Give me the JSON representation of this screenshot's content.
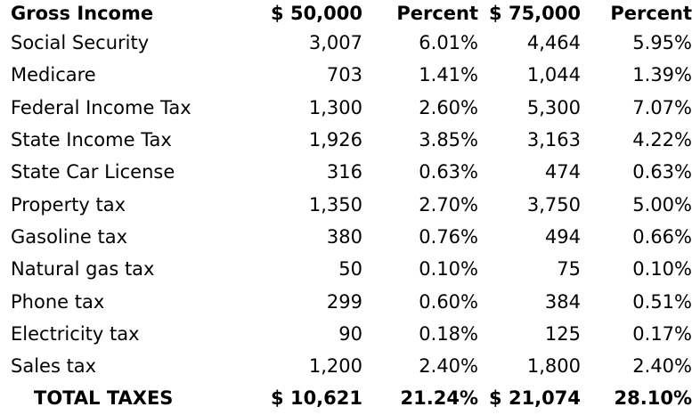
{
  "header": {
    "label": "Gross Income",
    "income_a": "$ 50,000",
    "pct_a": "Percent",
    "income_b": "$ 75,000",
    "pct_b": "Percent"
  },
  "rows": [
    {
      "name": "Social Security",
      "a": "3,007",
      "pa": "6.01%",
      "b": "4,464",
      "pb": "5.95%"
    },
    {
      "name": "Medicare",
      "a": "703",
      "pa": "1.41%",
      "b": "1,044",
      "pb": "1.39%"
    },
    {
      "name": "Federal Income Tax",
      "a": "1,300",
      "pa": "2.60%",
      "b": "5,300",
      "pb": "7.07%"
    },
    {
      "name": "State Income Tax",
      "a": "1,926",
      "pa": "3.85%",
      "b": "3,163",
      "pb": "4.22%"
    },
    {
      "name": "State Car License",
      "a": "316",
      "pa": "0.63%",
      "b": "474",
      "pb": "0.63%"
    },
    {
      "name": "Property tax",
      "a": "1,350",
      "pa": "2.70%",
      "b": "3,750",
      "pb": "5.00%"
    },
    {
      "name": "Gasoline tax",
      "a": "380",
      "pa": "0.76%",
      "b": "494",
      "pb": "0.66%"
    },
    {
      "name": "Natural gas tax",
      "a": "50",
      "pa": "0.10%",
      "b": "75",
      "pb": "0.10%"
    },
    {
      "name": "Phone tax",
      "a": "299",
      "pa": "0.60%",
      "b": "384",
      "pb": "0.51%"
    },
    {
      "name": "Electricity tax",
      "a": "90",
      "pa": "0.18%",
      "b": "125",
      "pb": "0.17%"
    },
    {
      "name": "Sales tax",
      "a": "1,200",
      "pa": "2.40%",
      "b": "1,800",
      "pb": "2.40%"
    }
  ],
  "total": {
    "label": "TOTAL TAXES",
    "a": "$ 10,621",
    "pa": "21.24%",
    "b": "$ 21,074",
    "pb": "28.10%"
  }
}
